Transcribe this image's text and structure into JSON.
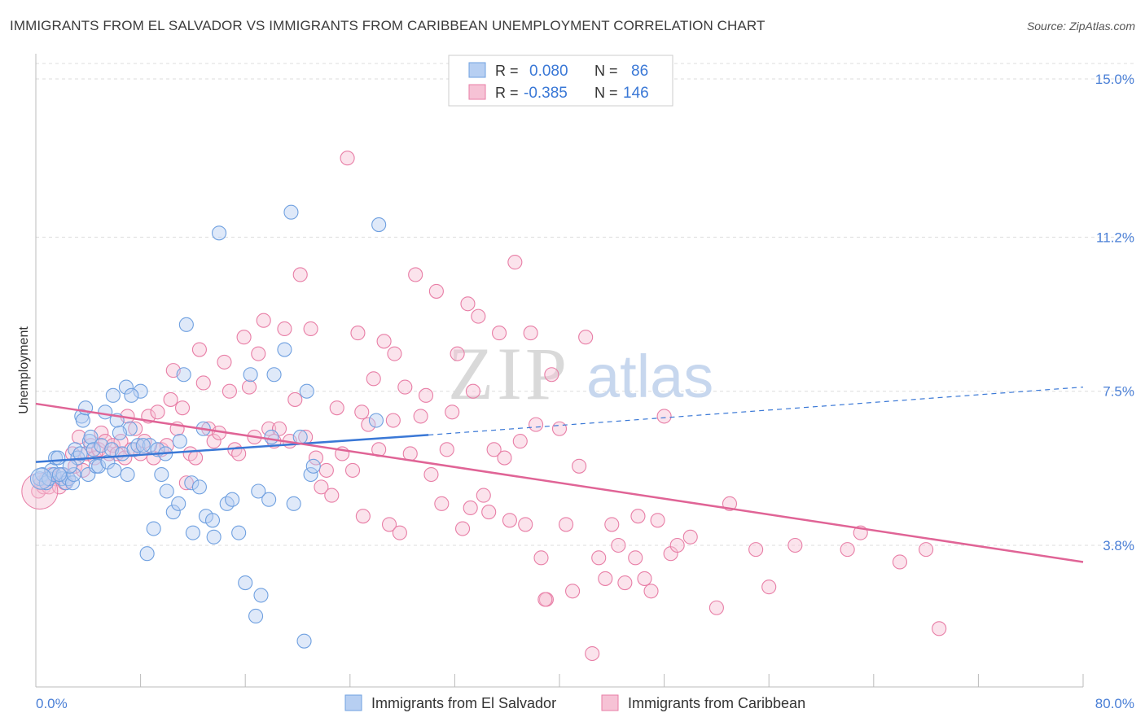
{
  "title": "IMMIGRANTS FROM EL SALVADOR VS IMMIGRANTS FROM CARIBBEAN UNEMPLOYMENT CORRELATION CHART",
  "source": "Source: ZipAtlas.com",
  "watermark": {
    "zip": "ZIP",
    "atlas": "atlas"
  },
  "colors": {
    "blue": "#6fa0e0",
    "blue_fill": "#b7cff2",
    "blue_line": "#3a78d6",
    "pink": "#e87ea6",
    "pink_fill": "#f6c2d5",
    "pink_line": "#e06496",
    "accent_text": "#4a7fd6",
    "grid": "#dddddd"
  },
  "legend": {
    "rows": [
      {
        "r_label": "R =",
        "r_value": "0.080",
        "n_label": "N =",
        "n_value": "86",
        "series": "blue"
      },
      {
        "r_label": "R =",
        "r_value": "-0.385",
        "n_label": "N =",
        "n_value": "146",
        "series": "pink"
      }
    ]
  },
  "chart_data": {
    "type": "scatter",
    "title": "IMMIGRANTS FROM EL SALVADOR VS IMMIGRANTS FROM CARIBBEAN UNEMPLOYMENT CORRELATION CHART",
    "xlabel": "",
    "ylabel": "Unemployment",
    "xlim": [
      0,
      80
    ],
    "ylim": [
      0,
      15.6
    ],
    "x_tick_labels": [
      "0.0%",
      "80.0%"
    ],
    "y_ticks": [
      3.8,
      7.5,
      11.2,
      15.0
    ],
    "y_tick_labels": [
      "3.8%",
      "7.5%",
      "11.2%",
      "15.0%"
    ],
    "grid": "horizontal dashed",
    "legend_position": "top-center",
    "series": [
      {
        "name": "Immigrants from El Salvador",
        "color": "blue",
        "trend": {
          "x0": 0,
          "y0": 5.8,
          "x1": 30,
          "y1": 6.45,
          "dashed_to_x": 80,
          "dashed_to_y": 7.6
        },
        "points": [
          [
            0.3,
            5.4
          ],
          [
            0.5,
            5.5
          ],
          [
            0.8,
            5.3
          ],
          [
            1.0,
            5.4
          ],
          [
            1.2,
            5.6
          ],
          [
            1.4,
            5.5
          ],
          [
            1.5,
            5.9
          ],
          [
            1.7,
            5.9
          ],
          [
            2.0,
            5.4
          ],
          [
            2.1,
            5.5
          ],
          [
            2.3,
            5.3
          ],
          [
            2.5,
            5.4
          ],
          [
            2.8,
            5.3
          ],
          [
            2.9,
            5.5
          ],
          [
            3.0,
            6.1
          ],
          [
            3.2,
            5.9
          ],
          [
            3.4,
            6.0
          ],
          [
            3.5,
            6.9
          ],
          [
            3.6,
            6.8
          ],
          [
            3.8,
            7.1
          ],
          [
            4.0,
            5.5
          ],
          [
            4.1,
            6.3
          ],
          [
            4.2,
            6.4
          ],
          [
            4.4,
            6.1
          ],
          [
            4.6,
            5.7
          ],
          [
            4.8,
            5.7
          ],
          [
            5.0,
            6.2
          ],
          [
            5.3,
            7.0
          ],
          [
            5.5,
            5.8
          ],
          [
            5.8,
            6.1
          ],
          [
            5.9,
            7.4
          ],
          [
            6.0,
            5.6
          ],
          [
            6.2,
            6.8
          ],
          [
            6.6,
            6.0
          ],
          [
            6.9,
            7.6
          ],
          [
            7.0,
            5.5
          ],
          [
            7.2,
            6.6
          ],
          [
            7.5,
            6.1
          ],
          [
            7.8,
            6.2
          ],
          [
            8.0,
            7.5
          ],
          [
            8.5,
            3.6
          ],
          [
            8.7,
            6.2
          ],
          [
            9.0,
            4.2
          ],
          [
            9.3,
            6.1
          ],
          [
            9.6,
            5.5
          ],
          [
            9.9,
            6.0
          ],
          [
            10.0,
            5.1
          ],
          [
            10.5,
            4.6
          ],
          [
            10.9,
            4.8
          ],
          [
            11.0,
            6.3
          ],
          [
            11.3,
            7.9
          ],
          [
            11.5,
            9.1
          ],
          [
            11.9,
            5.3
          ],
          [
            12.0,
            4.1
          ],
          [
            12.5,
            5.2
          ],
          [
            12.8,
            6.6
          ],
          [
            13.0,
            4.5
          ],
          [
            13.5,
            4.4
          ],
          [
            13.6,
            4.0
          ],
          [
            14.0,
            11.3
          ],
          [
            14.6,
            4.8
          ],
          [
            15.0,
            4.9
          ],
          [
            15.5,
            4.1
          ],
          [
            16.0,
            2.9
          ],
          [
            16.4,
            7.9
          ],
          [
            16.8,
            2.1
          ],
          [
            17.0,
            5.1
          ],
          [
            17.2,
            2.6
          ],
          [
            17.8,
            4.9
          ],
          [
            18.0,
            6.4
          ],
          [
            18.2,
            7.9
          ],
          [
            19.0,
            8.5
          ],
          [
            19.5,
            11.8
          ],
          [
            19.7,
            4.8
          ],
          [
            20.2,
            6.4
          ],
          [
            20.5,
            1.5
          ],
          [
            20.7,
            7.5
          ],
          [
            21.0,
            5.5
          ],
          [
            21.2,
            5.7
          ],
          [
            26.0,
            6.8
          ],
          [
            26.2,
            11.5
          ],
          [
            7.3,
            7.4
          ],
          [
            2.6,
            5.7
          ],
          [
            1.8,
            5.5
          ],
          [
            8.2,
            6.2
          ],
          [
            6.4,
            6.5
          ]
        ]
      },
      {
        "name": "Immigrants from Caribbean",
        "color": "pink",
        "trend": {
          "x0": 0,
          "y0": 7.2,
          "x1": 80,
          "y1": 3.4
        },
        "points": [
          [
            0.2,
            5.1
          ],
          [
            0.4,
            5.3
          ],
          [
            0.6,
            5.2
          ],
          [
            0.8,
            5.4
          ],
          [
            1.0,
            5.2
          ],
          [
            1.2,
            5.5
          ],
          [
            1.5,
            5.4
          ],
          [
            1.8,
            5.2
          ],
          [
            2.0,
            5.5
          ],
          [
            2.2,
            5.3
          ],
          [
            2.5,
            5.4
          ],
          [
            2.8,
            6.0
          ],
          [
            3.0,
            5.7
          ],
          [
            3.3,
            6.4
          ],
          [
            3.6,
            5.6
          ],
          [
            3.9,
            6.0
          ],
          [
            4.2,
            6.2
          ],
          [
            4.5,
            5.9
          ],
          [
            4.8,
            6.1
          ],
          [
            5.0,
            6.5
          ],
          [
            5.3,
            6.3
          ],
          [
            5.6,
            6.0
          ],
          [
            5.9,
            6.2
          ],
          [
            6.2,
            6.0
          ],
          [
            6.5,
            6.3
          ],
          [
            6.8,
            5.9
          ],
          [
            7.0,
            6.9
          ],
          [
            7.3,
            6.1
          ],
          [
            7.6,
            6.6
          ],
          [
            8.0,
            6.0
          ],
          [
            8.3,
            6.3
          ],
          [
            8.6,
            6.9
          ],
          [
            9.0,
            5.9
          ],
          [
            9.3,
            7.0
          ],
          [
            9.6,
            6.1
          ],
          [
            10.0,
            6.2
          ],
          [
            10.3,
            7.3
          ],
          [
            10.5,
            8.0
          ],
          [
            10.8,
            6.6
          ],
          [
            11.2,
            7.1
          ],
          [
            11.5,
            5.3
          ],
          [
            11.8,
            6.0
          ],
          [
            12.2,
            5.9
          ],
          [
            12.5,
            8.5
          ],
          [
            12.8,
            7.7
          ],
          [
            13.2,
            6.6
          ],
          [
            13.6,
            6.3
          ],
          [
            14.0,
            6.5
          ],
          [
            14.4,
            8.2
          ],
          [
            14.8,
            7.5
          ],
          [
            15.2,
            6.1
          ],
          [
            15.5,
            6.0
          ],
          [
            15.9,
            8.8
          ],
          [
            16.3,
            7.6
          ],
          [
            16.7,
            6.4
          ],
          [
            17.0,
            8.4
          ],
          [
            17.4,
            9.2
          ],
          [
            17.8,
            6.6
          ],
          [
            18.2,
            6.3
          ],
          [
            18.6,
            6.6
          ],
          [
            19.0,
            9.0
          ],
          [
            19.4,
            6.3
          ],
          [
            19.8,
            7.3
          ],
          [
            20.2,
            10.3
          ],
          [
            20.6,
            6.4
          ],
          [
            21.0,
            9.0
          ],
          [
            21.4,
            5.9
          ],
          [
            21.8,
            5.2
          ],
          [
            22.2,
            5.6
          ],
          [
            22.6,
            5.0
          ],
          [
            23.0,
            7.1
          ],
          [
            23.4,
            6.0
          ],
          [
            23.8,
            13.1
          ],
          [
            24.2,
            5.6
          ],
          [
            24.6,
            8.9
          ],
          [
            25.0,
            4.5
          ],
          [
            25.4,
            6.7
          ],
          [
            25.8,
            7.8
          ],
          [
            26.2,
            6.1
          ],
          [
            26.6,
            8.7
          ],
          [
            27.0,
            4.3
          ],
          [
            27.4,
            8.4
          ],
          [
            27.8,
            4.1
          ],
          [
            28.2,
            7.6
          ],
          [
            28.6,
            6.0
          ],
          [
            29.0,
            10.3
          ],
          [
            29.4,
            6.9
          ],
          [
            29.8,
            7.4
          ],
          [
            30.2,
            5.5
          ],
          [
            30.6,
            9.9
          ],
          [
            31.0,
            4.8
          ],
          [
            31.4,
            6.1
          ],
          [
            31.8,
            7.0
          ],
          [
            32.2,
            8.4
          ],
          [
            32.6,
            4.2
          ],
          [
            33.0,
            9.6
          ],
          [
            33.4,
            7.5
          ],
          [
            33.8,
            9.3
          ],
          [
            34.2,
            5.0
          ],
          [
            34.6,
            4.6
          ],
          [
            35.0,
            6.1
          ],
          [
            35.4,
            8.9
          ],
          [
            35.8,
            5.9
          ],
          [
            36.2,
            4.4
          ],
          [
            36.6,
            10.6
          ],
          [
            37.0,
            6.3
          ],
          [
            37.4,
            4.3
          ],
          [
            37.8,
            8.9
          ],
          [
            38.2,
            6.7
          ],
          [
            38.6,
            3.5
          ],
          [
            39.0,
            2.5
          ],
          [
            39.4,
            7.9
          ],
          [
            40.0,
            6.6
          ],
          [
            40.5,
            4.3
          ],
          [
            41.0,
            2.7
          ],
          [
            41.5,
            5.7
          ],
          [
            42.0,
            8.8
          ],
          [
            42.5,
            1.2
          ],
          [
            43.0,
            3.5
          ],
          [
            43.5,
            3.0
          ],
          [
            44.0,
            4.3
          ],
          [
            44.5,
            3.8
          ],
          [
            45.0,
            2.9
          ],
          [
            46.0,
            4.5
          ],
          [
            46.5,
            3.0
          ],
          [
            47.0,
            2.7
          ],
          [
            47.5,
            4.4
          ],
          [
            48.0,
            6.9
          ],
          [
            48.5,
            3.6
          ],
          [
            49.0,
            3.8
          ],
          [
            50.0,
            4.0
          ],
          [
            52.0,
            2.3
          ],
          [
            53.0,
            4.8
          ],
          [
            55.0,
            3.7
          ],
          [
            56.0,
            2.8
          ],
          [
            58.0,
            3.8
          ],
          [
            62.0,
            3.7
          ],
          [
            63.0,
            4.1
          ],
          [
            66.0,
            3.4
          ],
          [
            68.0,
            3.7
          ],
          [
            69.0,
            1.8
          ],
          [
            45.8,
            3.5
          ],
          [
            38.9,
            2.5
          ],
          [
            33.2,
            4.7
          ],
          [
            27.3,
            6.8
          ],
          [
            24.9,
            7.0
          ]
        ]
      }
    ]
  },
  "bottom_legend": [
    "Immigrants from El Salvador",
    "Immigrants from Caribbean"
  ]
}
